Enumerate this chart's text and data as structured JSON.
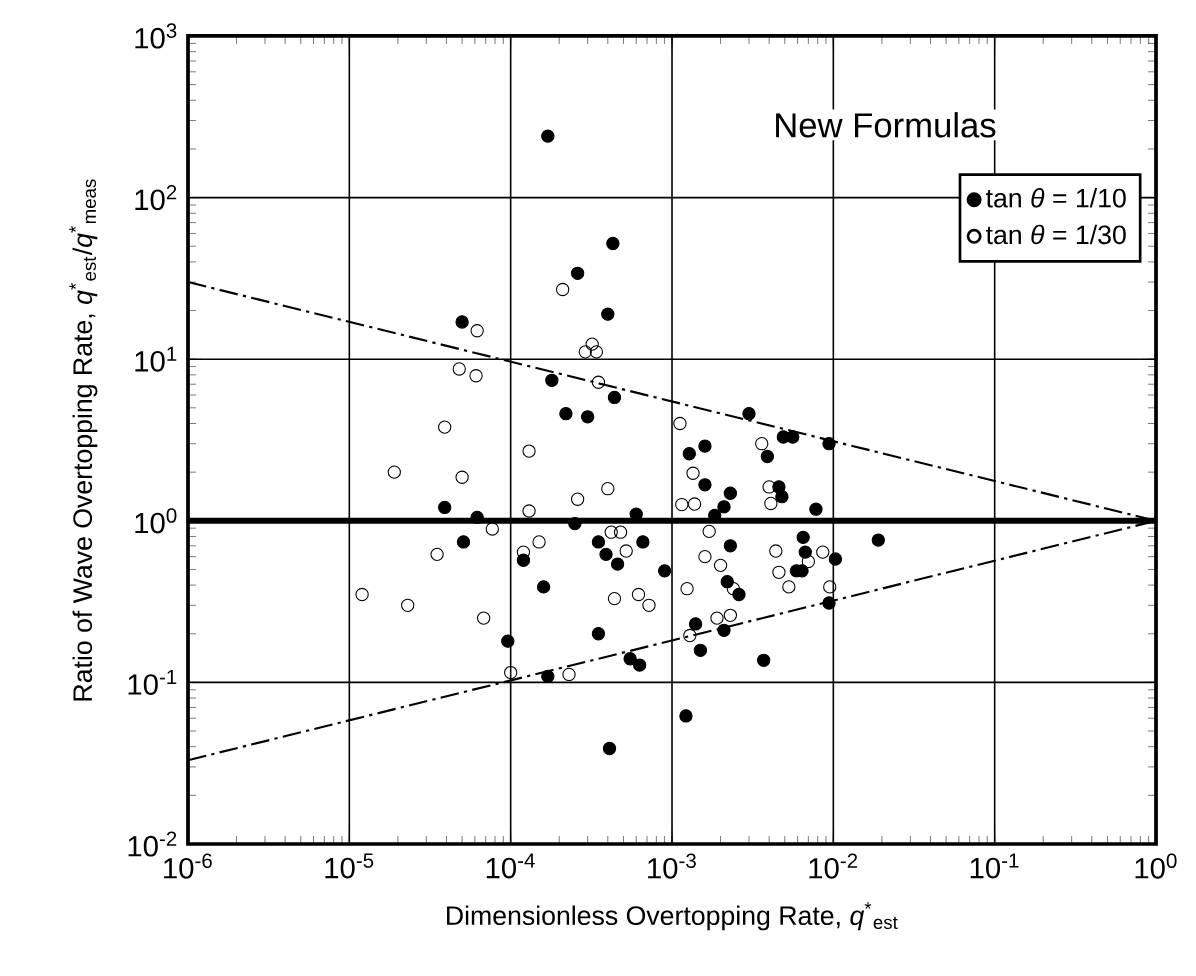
{
  "chart_data": {
    "type": "scatter",
    "title": "New Formulas",
    "xlabel": "Dimensionless Overtopping Rate,  *q*$^{*}$$_{est}$",
    "ylabel": "Ratio of Wave Overtopping Rate,  *q*$^{*}$$_{est}$/*q*$^{*}$$_{meas}$",
    "log": "xy",
    "grid": true,
    "legend": "top right",
    "xlim": [
      1e-06,
      1
    ],
    "ylim": [
      0.01,
      1000
    ],
    "xticks": [
      {
        "value": 1e-06,
        "label": "10$^{-6}$"
      },
      {
        "value": 1e-05,
        "label": "10$^{-5}$"
      },
      {
        "value": 0.0001,
        "label": "10$^{-4}$"
      },
      {
        "value": 0.001,
        "label": "10$^{-3}$"
      },
      {
        "value": 0.01,
        "label": "10$^{-2}$"
      },
      {
        "value": 0.1,
        "label": "10$^{-1}$"
      },
      {
        "value": 1,
        "label": "10$^{0}$"
      }
    ],
    "yticks": [
      {
        "value": 0.01,
        "label": "10$^{-2}$"
      },
      {
        "value": 0.1,
        "label": "10$^{-1}$"
      },
      {
        "value": 1,
        "label": "10$^{0}$"
      },
      {
        "value": 10,
        "label": "10$^{1}$"
      },
      {
        "value": 100,
        "label": "10$^{2}$"
      },
      {
        "value": 1000,
        "label": "10$^{3}$"
      }
    ],
    "ref_lines": [
      {
        "axis": "y",
        "value": 1,
        "color": "#000000",
        "line_style": "solid"
      }
    ],
    "series": [
      {
        "name": "tan *θ* = 1/10",
        "marker": "circle",
        "color": "#000000",
        "x": [
          0.00043,
          0.00026,
          0.0004,
          5e-05,
          0.00018,
          0.00044,
          0.00022,
          0.0003,
          3.9e-05,
          6.2e-05,
          0.0006,
          0.00025,
          5.1e-05,
          0.00035,
          0.00066,
          0.00039,
          0.00046,
          0.00012,
          0.00016,
          9.6e-05,
          0.00017,
          0.00035,
          0.00055,
          0.00063,
          0.00041,
          0.00017,
          0.003,
          0.0049,
          0.0056,
          0.0039,
          0.0094,
          0.00128,
          0.0016,
          0.0016,
          0.0046,
          0.0023,
          0.0048,
          0.0021,
          0.00184,
          0.0078,
          0.0009,
          0.00122,
          0.0037,
          0.0015,
          0.0014,
          0.0021,
          0.0026,
          0.0022,
          0.0023,
          0.0059,
          0.0064,
          0.0067,
          0.0065,
          0.0103,
          0.0094,
          0.019
        ],
        "values": [
          52,
          34,
          19,
          17,
          7.4,
          5.8,
          4.6,
          4.4,
          1.21,
          1.05,
          1.1,
          0.96,
          0.74,
          0.74,
          0.74,
          0.62,
          0.54,
          0.57,
          0.39,
          0.18,
          0.109,
          0.2,
          0.14,
          0.128,
          0.039,
          240,
          4.6,
          3.3,
          3.3,
          2.5,
          3.0,
          2.6,
          2.9,
          1.67,
          1.62,
          1.48,
          1.41,
          1.22,
          1.08,
          1.18,
          0.49,
          0.062,
          0.137,
          0.158,
          0.23,
          0.21,
          0.35,
          0.42,
          0.7,
          0.49,
          0.49,
          0.64,
          0.79,
          0.58,
          0.31,
          0.76
        ]
      },
      {
        "name": "tan *θ* = 1/30",
        "marker": "open circle",
        "color": "#000000",
        "x": [
          0.00021,
          6.2e-05,
          0.00032,
          0.00029,
          0.00034,
          4.8e-05,
          6.1e-05,
          0.00035,
          3.9e-05,
          0.00013,
          1.9e-05,
          5e-05,
          0.0004,
          0.00026,
          0.00013,
          7.7e-05,
          0.00042,
          0.00048,
          0.00015,
          0.00052,
          0.00012,
          3.5e-05,
          1.2e-05,
          2.3e-05,
          0.00062,
          0.00044,
          0.00072,
          6.8e-05,
          0.0001,
          0.00023,
          0.00112,
          0.0036,
          0.00135,
          0.004,
          0.00115,
          0.00138,
          0.0041,
          0.00129,
          0.0019,
          0.0023,
          0.00124,
          0.0024,
          0.0016,
          0.002,
          0.0017,
          0.0044,
          0.0046,
          0.0053,
          0.007,
          0.0086,
          0.0095
        ],
        "values": [
          27,
          15,
          12.4,
          11.1,
          11.1,
          8.7,
          7.9,
          7.2,
          3.8,
          2.7,
          2.0,
          1.86,
          1.58,
          1.36,
          1.15,
          0.89,
          0.85,
          0.85,
          0.74,
          0.65,
          0.64,
          0.62,
          0.35,
          0.3,
          0.35,
          0.33,
          0.3,
          0.25,
          0.115,
          0.112,
          4.0,
          3.0,
          1.97,
          1.62,
          1.26,
          1.27,
          1.28,
          0.195,
          0.25,
          0.26,
          0.38,
          0.38,
          0.6,
          0.53,
          0.86,
          0.65,
          0.48,
          0.39,
          0.56,
          0.64,
          0.39
        ]
      },
      {
        "type": "line",
        "line_style": "dashdot",
        "marker": "none",
        "color": "#000000",
        "x": [
          1e-06,
          1
        ],
        "values": [
          30,
          1
        ]
      },
      {
        "type": "line",
        "line_style": "dashdot",
        "marker": "none",
        "color": "#000000",
        "x": [
          1e-06,
          1
        ],
        "values": [
          0.033,
          1
        ]
      }
    ]
  }
}
